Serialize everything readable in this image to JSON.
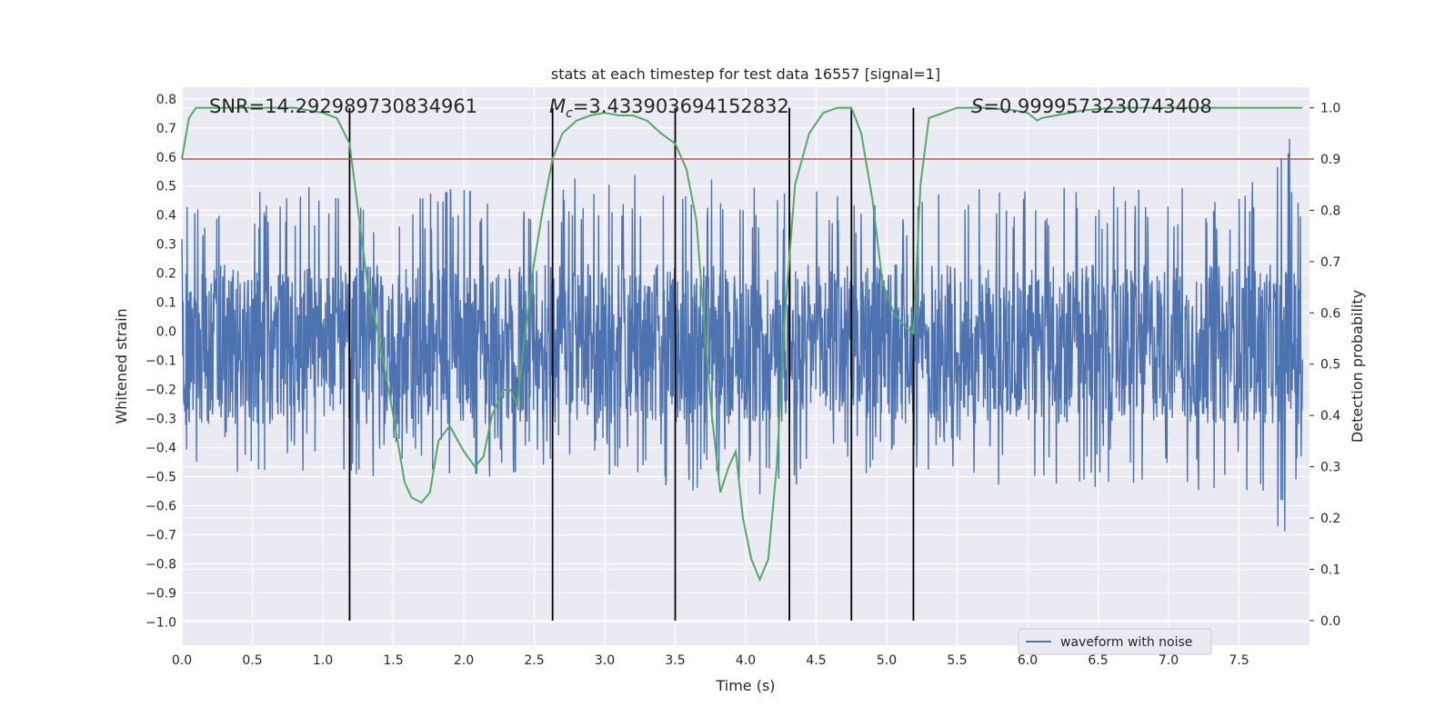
{
  "chart_data": {
    "type": "line",
    "title": "stats at each timestep for test data 16557 [signal=1]",
    "xlabel": "Time (s)",
    "ylabel": "Whitened strain",
    "ylabel_right": "Detection probability",
    "xlim": [
      0.0,
      8.0
    ],
    "ylim": [
      -1.08,
      0.84
    ],
    "ylim_right": [
      -0.048,
      1.04
    ],
    "x_ticks": [
      "0.0",
      "0.5",
      "1.0",
      "1.5",
      "2.0",
      "2.5",
      "3.0",
      "3.5",
      "4.0",
      "4.5",
      "5.0",
      "5.5",
      "6.0",
      "6.5",
      "7.0",
      "7.5"
    ],
    "y_ticks": [
      "0.8",
      "0.7",
      "0.6",
      "0.5",
      "0.4",
      "0.3",
      "0.2",
      "0.1",
      "0.0",
      "−0.1",
      "−0.2",
      "−0.3",
      "−0.4",
      "−0.5",
      "−0.6",
      "−0.7",
      "−0.8",
      "−0.9",
      "−1.0"
    ],
    "y_ticks_right": [
      "1.0",
      "0.9",
      "0.8",
      "0.7",
      "0.6",
      "0.5",
      "0.4",
      "0.3",
      "0.2",
      "0.1",
      "0.0"
    ],
    "grid": true,
    "legend": {
      "location": "lower-center-right",
      "entries": [
        "waveform with noise"
      ]
    },
    "annotations": {
      "snr": "SNR=14.292989730834961",
      "mc_symbol": "M",
      "mc_sub": "c",
      "mc_value": "=3.433903694152832",
      "s_symbol": "S",
      "s_value": "=0.9999573230743408"
    },
    "colors": {
      "waveform": "#4c72b0",
      "probability": "#55a868",
      "threshold": "#c44e52",
      "markers": "#000000",
      "axes_bg": "#eaeaf2"
    },
    "threshold_right": 0.9,
    "marker_lines": {
      "x": [
        1.19,
        2.63,
        3.5,
        4.31,
        4.75,
        5.19
      ],
      "y_range_right": [
        0.0,
        1.0
      ]
    },
    "series": [
      {
        "name": "waveform with noise",
        "axis": "left",
        "envelope": {
          "x": [
            0.0,
            0.5,
            1.0,
            1.5,
            2.0,
            2.5,
            3.0,
            3.5,
            4.0,
            4.2,
            4.5,
            5.0,
            5.5,
            6.0,
            6.5,
            7.0,
            7.5,
            7.8,
            7.85,
            7.9,
            7.95
          ],
          "upper": [
            0.45,
            0.5,
            0.5,
            0.45,
            0.5,
            0.5,
            0.55,
            0.55,
            0.5,
            0.5,
            0.5,
            0.45,
            0.5,
            0.5,
            0.5,
            0.5,
            0.5,
            0.6,
            0.75,
            0.6,
            0.5
          ],
          "lower": [
            -0.45,
            -0.5,
            -0.5,
            -0.5,
            -0.5,
            -0.5,
            -0.5,
            -0.55,
            -0.55,
            -0.6,
            -0.5,
            -0.5,
            -0.5,
            -0.55,
            -0.55,
            -0.55,
            -0.55,
            -0.7,
            -1.0,
            -0.6,
            -0.5
          ]
        },
        "core": {
          "upper": 0.23,
          "lower": -0.32
        }
      },
      {
        "name": "Detection probability",
        "axis": "right",
        "x": [
          0.0,
          0.05,
          0.1,
          0.2,
          0.5,
          0.8,
          1.0,
          1.1,
          1.19,
          1.25,
          1.32,
          1.4,
          1.5,
          1.58,
          1.63,
          1.7,
          1.76,
          1.82,
          1.9,
          2.0,
          2.08,
          2.14,
          2.2,
          2.28,
          2.33,
          2.38,
          2.43,
          2.5,
          2.56,
          2.63,
          2.7,
          2.8,
          2.9,
          3.0,
          3.1,
          3.2,
          3.3,
          3.4,
          3.5,
          3.58,
          3.65,
          3.7,
          3.76,
          3.82,
          3.88,
          3.93,
          3.98,
          4.04,
          4.1,
          4.16,
          4.22,
          4.28,
          4.35,
          4.45,
          4.55,
          4.65,
          4.75,
          4.82,
          4.9,
          4.97,
          5.05,
          5.14,
          5.19,
          5.24,
          5.3,
          5.5,
          5.7,
          5.9,
          6.0,
          6.07,
          6.1,
          6.2,
          6.4,
          6.6,
          6.8,
          7.0,
          7.5,
          7.95
        ],
        "y": [
          0.9,
          0.98,
          1.0,
          1.0,
          1.0,
          1.0,
          0.99,
          0.98,
          0.93,
          0.8,
          0.65,
          0.55,
          0.4,
          0.27,
          0.24,
          0.23,
          0.25,
          0.35,
          0.38,
          0.33,
          0.3,
          0.32,
          0.4,
          0.45,
          0.45,
          0.42,
          0.55,
          0.7,
          0.8,
          0.9,
          0.95,
          0.975,
          0.985,
          0.99,
          0.985,
          0.985,
          0.975,
          0.95,
          0.93,
          0.88,
          0.78,
          0.6,
          0.4,
          0.25,
          0.3,
          0.33,
          0.2,
          0.12,
          0.08,
          0.12,
          0.3,
          0.6,
          0.85,
          0.95,
          0.99,
          1.0,
          1.0,
          0.95,
          0.82,
          0.66,
          0.6,
          0.57,
          0.56,
          0.85,
          0.98,
          1.0,
          1.0,
          0.995,
          0.99,
          0.975,
          0.98,
          0.985,
          0.995,
          1.0,
          1.0,
          1.0,
          1.0,
          1.0
        ]
      }
    ]
  }
}
